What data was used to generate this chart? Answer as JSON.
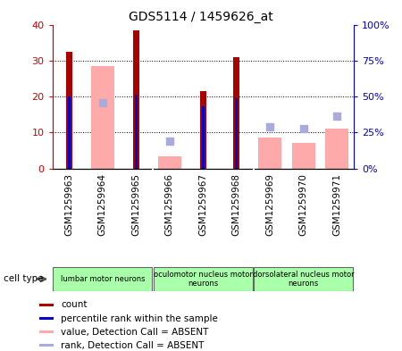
{
  "title": "GDS5114 / 1459626_at",
  "samples": [
    "GSM1259963",
    "GSM1259964",
    "GSM1259965",
    "GSM1259966",
    "GSM1259967",
    "GSM1259968",
    "GSM1259969",
    "GSM1259970",
    "GSM1259971"
  ],
  "count_values": [
    32.5,
    0,
    38.5,
    0,
    21.5,
    31.0,
    0,
    0,
    0
  ],
  "count_color": "#aa0000",
  "rank_values": [
    50.0,
    0,
    51.0,
    0,
    43.5,
    48.5,
    0,
    0,
    0
  ],
  "rank_color": "#0000cc",
  "absent_value_bars": [
    0,
    28.5,
    0,
    3.5,
    0,
    0,
    8.5,
    7.0,
    11.0
  ],
  "absent_value_color": "#ffaaaa",
  "absent_rank_dots_right": [
    0,
    46.0,
    0,
    19.0,
    0,
    0,
    29.0,
    27.5,
    36.5
  ],
  "absent_rank_color": "#aaaadd",
  "ylim_left": [
    0,
    40
  ],
  "ylim_right": [
    0,
    100
  ],
  "cell_groups": [
    {
      "label": "lumbar motor neurons",
      "start": 0,
      "end": 3
    },
    {
      "label": "oculomotor nucleus motor\nneurons",
      "start": 3,
      "end": 6
    },
    {
      "label": "dorsolateral nucleus motor\nneurons",
      "start": 6,
      "end": 9
    }
  ],
  "cell_group_color": "#aaffaa",
  "yticks_left": [
    0,
    10,
    20,
    30,
    40
  ],
  "ytick_labels_left": [
    "0",
    "10",
    "20",
    "30",
    "40"
  ],
  "yticks_right": [
    0,
    25,
    50,
    75,
    100
  ],
  "ytick_labels_right": [
    "0%",
    "25%",
    "50%",
    "75%",
    "100%"
  ],
  "legend_items": [
    {
      "label": "count",
      "color": "#aa0000"
    },
    {
      "label": "percentile rank within the sample",
      "color": "#0000cc"
    },
    {
      "label": "value, Detection Call = ABSENT",
      "color": "#ffaaaa"
    },
    {
      "label": "rank, Detection Call = ABSENT",
      "color": "#aaaadd"
    }
  ],
  "grid_color": "#000000",
  "left_axis_color": "#cc0000",
  "right_axis_color": "#0000cc",
  "label_bg_color": "#cccccc",
  "plot_border_color": "#000000"
}
